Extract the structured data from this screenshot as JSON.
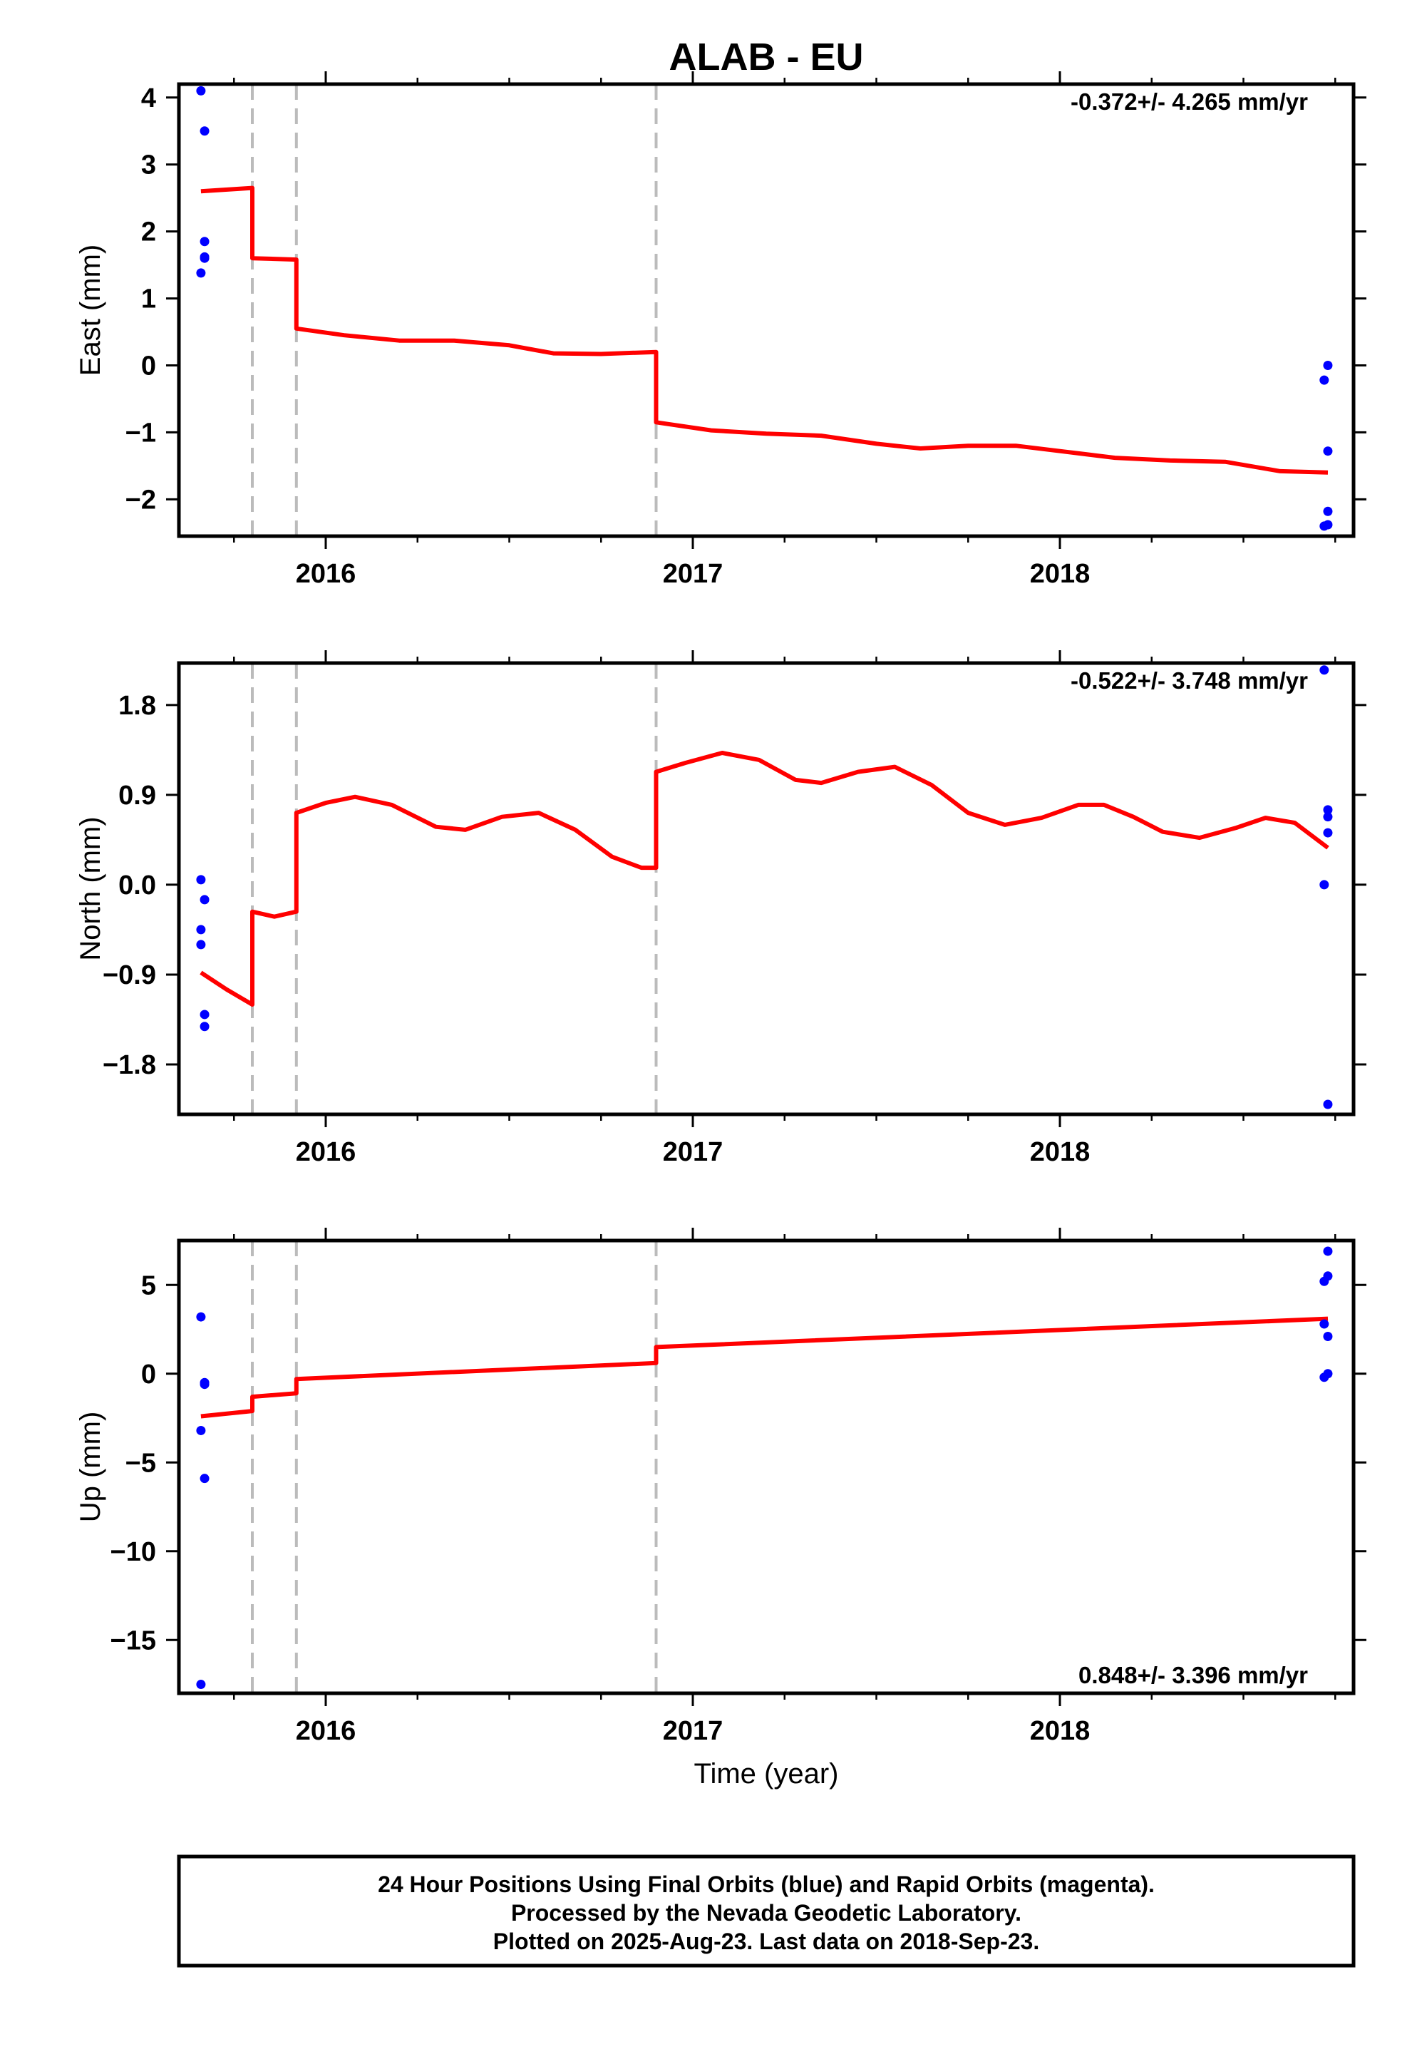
{
  "page_title": "ALAB - EU",
  "footer": {
    "lines": [
      "24 Hour Positions Using Final Orbits (blue) and Rapid Orbits (magenta).",
      "Processed by the Nevada Geodetic Laboratory.",
      "Plotted on 2025-Aug-23. Last data on 2018-Sep-23."
    ]
  },
  "colors": {
    "obs": "#0000ff",
    "model": "#ff0000",
    "steps": "#bbbbbb"
  },
  "chart_data": [
    {
      "type": "scatter",
      "title": "ALAB - EU",
      "ylabel": "East (mm)",
      "xlabel": "",
      "rate_label": "-0.372+/- 4.265 mm/yr",
      "rate_position": "top-right",
      "xlim": [
        2015.6,
        2018.8
      ],
      "ylim": [
        -2.55,
        4.2
      ],
      "yticks": [
        -2,
        -1,
        0,
        1,
        2,
        3,
        4
      ],
      "ytick_labels": [
        "−2",
        "−1",
        "0",
        "1",
        "2",
        "3",
        "4"
      ],
      "xticks": [
        2016,
        2017,
        2018
      ],
      "xtick_labels": [
        "2016",
        "2017",
        "2018"
      ],
      "step_epochs": [
        2015.8,
        2015.92,
        2016.9
      ],
      "series": [
        {
          "kind": "points",
          "x": [
            2015.66,
            2015.67,
            2015.67,
            2015.67,
            2015.66,
            2015.67,
            2018.72,
            2018.73,
            2018.73,
            2018.73,
            2018.72,
            2018.73
          ],
          "y": [
            4.1,
            3.5,
            1.85,
            1.6,
            1.38,
            1.62,
            -0.22,
            0.0,
            -1.28,
            -2.18,
            -2.4,
            -2.38
          ]
        },
        {
          "kind": "line",
          "x": [
            2015.66,
            2015.8,
            2015.8,
            2015.92,
            2015.92,
            2016.05,
            2016.2,
            2016.35,
            2016.5,
            2016.62,
            2016.75,
            2016.9,
            2016.9,
            2017.05,
            2017.2,
            2017.35,
            2017.5,
            2017.62,
            2017.75,
            2017.88,
            2018.0,
            2018.15,
            2018.3,
            2018.45,
            2018.6,
            2018.73
          ],
          "y": [
            2.6,
            2.65,
            1.6,
            1.58,
            0.55,
            0.45,
            0.37,
            0.37,
            0.3,
            0.18,
            0.17,
            0.2,
            -0.85,
            -0.97,
            -1.02,
            -1.05,
            -1.17,
            -1.24,
            -1.2,
            -1.2,
            -1.28,
            -1.38,
            -1.42,
            -1.44,
            -1.58,
            -1.6
          ]
        }
      ]
    },
    {
      "type": "scatter",
      "title": "",
      "ylabel": "North (mm)",
      "xlabel": "",
      "rate_label": "-0.522+/- 3.748 mm/yr",
      "rate_position": "top-right",
      "xlim": [
        2015.6,
        2018.8
      ],
      "ylim": [
        -2.3,
        2.22
      ],
      "yticks": [
        -1.8,
        -0.9,
        0.0,
        0.9,
        1.8
      ],
      "ytick_labels": [
        "−1.8",
        "−0.9",
        "0.0",
        "0.9",
        "1.8"
      ],
      "xticks": [
        2016,
        2017,
        2018
      ],
      "xtick_labels": [
        "2016",
        "2017",
        "2018"
      ],
      "step_epochs": [
        2015.8,
        2015.92,
        2016.9
      ],
      "series": [
        {
          "kind": "points",
          "x": [
            2015.66,
            2015.67,
            2015.66,
            2015.66,
            2015.67,
            2015.67,
            2018.72,
            2018.73,
            2018.73,
            2018.73,
            2018.72,
            2018.73
          ],
          "y": [
            0.05,
            -0.15,
            -0.45,
            -0.6,
            -1.3,
            -1.42,
            2.15,
            0.75,
            0.68,
            0.52,
            0.0,
            -2.2
          ]
        },
        {
          "kind": "line",
          "x": [
            2015.66,
            2015.73,
            2015.8,
            2015.8,
            2015.86,
            2015.92,
            2015.92,
            2016.0,
            2016.08,
            2016.18,
            2016.3,
            2016.38,
            2016.48,
            2016.58,
            2016.68,
            2016.78,
            2016.86,
            2016.9,
            2016.9,
            2016.98,
            2017.08,
            2017.18,
            2017.28,
            2017.35,
            2017.45,
            2017.55,
            2017.65,
            2017.75,
            2017.85,
            2017.95,
            2018.05,
            2018.12,
            2018.2,
            2018.28,
            2018.38,
            2018.48,
            2018.56,
            2018.64,
            2018.73
          ],
          "y": [
            -0.88,
            -1.05,
            -1.2,
            -0.27,
            -0.32,
            -0.27,
            0.72,
            0.82,
            0.88,
            0.8,
            0.58,
            0.55,
            0.68,
            0.72,
            0.55,
            0.28,
            0.17,
            0.17,
            1.13,
            1.22,
            1.32,
            1.25,
            1.05,
            1.02,
            1.13,
            1.18,
            1.0,
            0.72,
            0.6,
            0.67,
            0.8,
            0.8,
            0.68,
            0.53,
            0.47,
            0.57,
            0.67,
            0.62,
            0.37
          ]
        }
      ]
    },
    {
      "type": "scatter",
      "title": "",
      "ylabel": "Up (mm)",
      "xlabel": "Time (year)",
      "rate_label": "0.848+/- 3.396 mm/yr",
      "rate_position": "bottom-right",
      "xlim": [
        2015.6,
        2018.8
      ],
      "ylim": [
        -18,
        7.5
      ],
      "yticks": [
        -15,
        -10,
        -5,
        0,
        5
      ],
      "ytick_labels": [
        "−15",
        "−10",
        "−5",
        "0",
        "5"
      ],
      "xticks": [
        2016,
        2017,
        2018
      ],
      "xtick_labels": [
        "2016",
        "2017",
        "2018"
      ],
      "step_epochs": [
        2015.8,
        2015.92,
        2016.9
      ],
      "series": [
        {
          "kind": "points",
          "x": [
            2015.66,
            2015.67,
            2015.67,
            2015.66,
            2015.67,
            2015.66,
            2018.73,
            2018.72,
            2018.73,
            2018.72,
            2018.73,
            2018.73,
            2018.72
          ],
          "y": [
            3.2,
            -0.5,
            -0.6,
            -3.2,
            -5.9,
            -17.5,
            6.9,
            5.2,
            5.5,
            2.8,
            2.1,
            0.0,
            -0.2
          ]
        },
        {
          "kind": "line",
          "x": [
            2015.66,
            2015.8,
            2015.8,
            2015.92,
            2015.92,
            2016.9,
            2016.9,
            2018.73
          ],
          "y": [
            -2.4,
            -2.1,
            -1.3,
            -1.1,
            -0.3,
            0.6,
            1.5,
            3.1
          ]
        }
      ]
    }
  ]
}
